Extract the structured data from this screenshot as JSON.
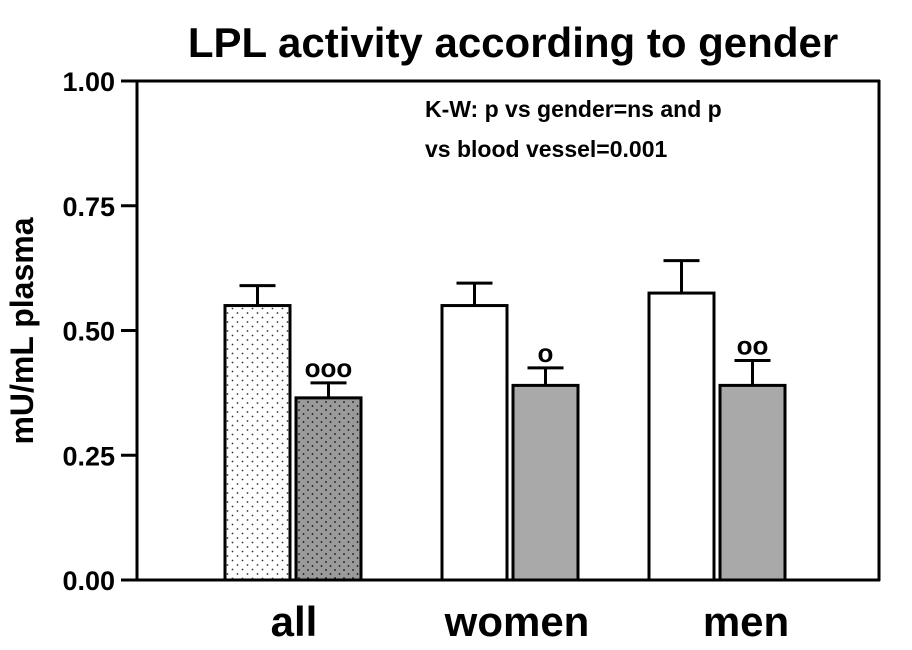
{
  "chart_data": {
    "type": "bar",
    "title": "LPL activity according to gender",
    "ylabel": "mU/mL plasma",
    "xlabel": "",
    "ylim": [
      0,
      1.0
    ],
    "yticks": [
      "0.00",
      "0.25",
      "0.50",
      "0.75",
      "1.00"
    ],
    "categories": [
      "all",
      "women",
      "men"
    ],
    "annotation": [
      "K-W: p vs gender=ns and p",
      "vs blood vessel=0.001"
    ],
    "grid": false,
    "bars": [
      {
        "category": "all",
        "slot": 0,
        "value": 0.55,
        "error": 0.04,
        "fill": "dotted-light",
        "sig": ""
      },
      {
        "category": "all",
        "slot": 1,
        "value": 0.365,
        "error": 0.03,
        "fill": "dotted-dark",
        "sig": "ooo"
      },
      {
        "category": "women",
        "slot": 0,
        "value": 0.55,
        "error": 0.045,
        "fill": "white",
        "sig": ""
      },
      {
        "category": "women",
        "slot": 1,
        "value": 0.39,
        "error": 0.035,
        "fill": "gray",
        "sig": "o"
      },
      {
        "category": "men",
        "slot": 0,
        "value": 0.575,
        "error": 0.065,
        "fill": "white",
        "sig": ""
      },
      {
        "category": "men",
        "slot": 1,
        "value": 0.39,
        "error": 0.05,
        "fill": "gray",
        "sig": "oo"
      }
    ]
  },
  "colors": {
    "axis": "#000000",
    "gray_fill": "#a9a9a9",
    "white_fill": "#ffffff",
    "dotted_light_bg": "#ffffff",
    "dotted_dark_bg": "#9a9a9a"
  }
}
